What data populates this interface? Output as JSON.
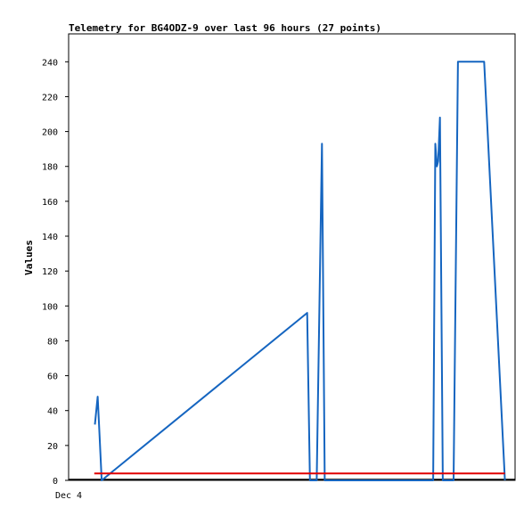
{
  "chart_data": {
    "type": "line",
    "title": "Telemetry for BG4ODZ-9 over last 96 hours (27 points)",
    "ylabel": "Values",
    "xlabel": "",
    "x_tick_labels": [
      "Dec 4"
    ],
    "ylim": [
      0,
      256
    ],
    "y_ticks": [
      0,
      20,
      40,
      60,
      80,
      100,
      120,
      140,
      160,
      180,
      200,
      220,
      240
    ],
    "grid": false,
    "series": [
      {
        "color": "#1565c0",
        "points": [
          [
            8.5,
            32
          ],
          [
            9.4,
            48
          ],
          [
            10.0,
            26
          ],
          [
            10.7,
            0
          ],
          [
            77.2,
            96
          ],
          [
            78.1,
            0
          ],
          [
            80.3,
            0
          ],
          [
            82.0,
            193
          ],
          [
            82.9,
            0
          ],
          [
            118.0,
            0
          ],
          [
            118.7,
            193
          ],
          [
            119.2,
            180
          ],
          [
            119.6,
            183
          ],
          [
            120.2,
            208
          ],
          [
            121.1,
            0
          ],
          [
            124.6,
            0
          ],
          [
            126.0,
            240
          ],
          [
            134.5,
            240
          ],
          [
            141.2,
            0
          ]
        ]
      },
      {
        "color": "#e00000",
        "points": [
          [
            8.3,
            4
          ],
          [
            141.2,
            4
          ]
        ]
      }
    ]
  }
}
